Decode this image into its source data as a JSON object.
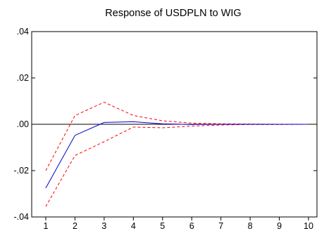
{
  "chart_data": {
    "type": "line",
    "title": "Response of USDPLN to WIG",
    "xlabel": "",
    "ylabel": "",
    "x": [
      1,
      2,
      3,
      4,
      5,
      6,
      7,
      8,
      9,
      10
    ],
    "xticks": [
      "1",
      "2",
      "3",
      "4",
      "5",
      "6",
      "7",
      "8",
      "9",
      "10"
    ],
    "ylim": [
      -0.04,
      0.04
    ],
    "yticks": [
      0.04,
      0.02,
      0.0,
      -0.02,
      -0.04
    ],
    "ytick_labels": [
      ".04",
      ".02",
      ".00",
      "-.02",
      "-.04"
    ],
    "grid": false,
    "zero_line": true,
    "series": [
      {
        "role": "response",
        "style": "solid",
        "color": "#0000cc",
        "values": [
          -0.0275,
          -0.0048,
          0.0008,
          0.0011,
          0.0002,
          -0.0001,
          0.0,
          0.0,
          0.0,
          0.0
        ]
      },
      {
        "role": "upper-band",
        "style": "dashed",
        "color": "#ff0000",
        "values": [
          -0.02,
          0.0038,
          0.0095,
          0.0038,
          0.0015,
          0.0005,
          0.0002,
          0.0001,
          0.0,
          0.0
        ]
      },
      {
        "role": "lower-band",
        "style": "dashed",
        "color": "#ff0000",
        "values": [
          -0.0355,
          -0.0135,
          -0.0075,
          -0.0012,
          -0.0015,
          -0.0008,
          -0.0003,
          -0.0001,
          -0.0001,
          0.0
        ]
      }
    ]
  }
}
